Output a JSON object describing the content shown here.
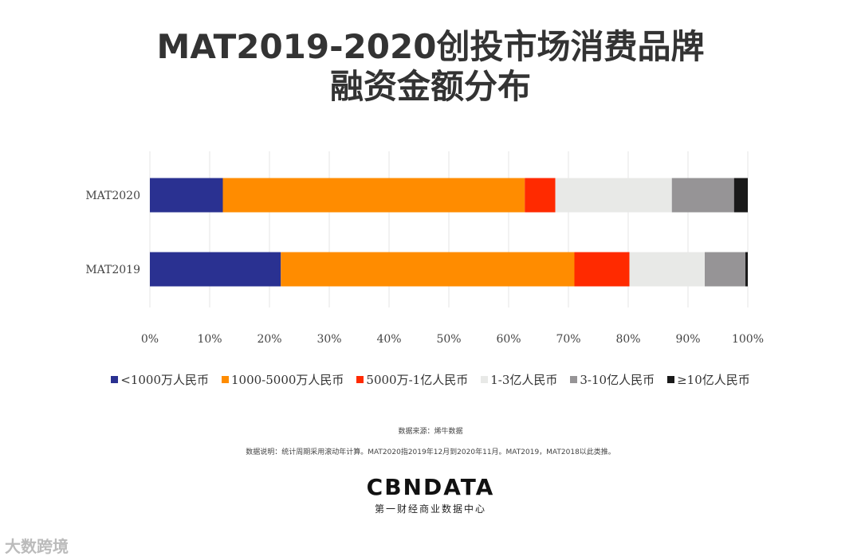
{
  "title": {
    "line1": "MAT2019-2020创投市场消费品牌",
    "line2": "融资金额分布"
  },
  "chart_data": {
    "type": "bar",
    "orientation": "horizontal",
    "stacked": true,
    "categories": [
      "MAT2020",
      "MAT2019"
    ],
    "series": [
      {
        "name": "<1000万人民币",
        "color": "#2a3191",
        "values": [
          12.2,
          21.9
        ]
      },
      {
        "name": "1000-5000万人民币",
        "color": "#ff8c00",
        "values": [
          50.5,
          49.1
        ]
      },
      {
        "name": "5000万-1亿人民币",
        "color": "#ff2a00",
        "values": [
          5.1,
          9.2
        ]
      },
      {
        "name": "1-3亿人民币",
        "color": "#e8e9e7",
        "values": [
          19.5,
          12.6
        ]
      },
      {
        "name": "3-10亿人民币",
        "color": "#969496",
        "values": [
          10.4,
          6.8
        ]
      },
      {
        "name": "≥10亿人民币",
        "color": "#1a1a1a",
        "values": [
          2.3,
          0.4
        ]
      }
    ],
    "xlim": [
      0,
      100
    ],
    "x_ticks": [
      "0%",
      "10%",
      "20%",
      "30%",
      "40%",
      "50%",
      "60%",
      "70%",
      "80%",
      "90%",
      "100%"
    ],
    "legend_position": "bottom",
    "grid": "vertical"
  },
  "source": "数据来源：烯牛数据",
  "note": "数据说明：统计周期采用滚动年计算。MAT2020指2019年12月到2020年11月。MAT2019，MAT2018以此类推。",
  "brand": {
    "logo": "CBNDATA",
    "subtitle": "第一财经商业数据中心"
  },
  "watermark": "大数跨境"
}
